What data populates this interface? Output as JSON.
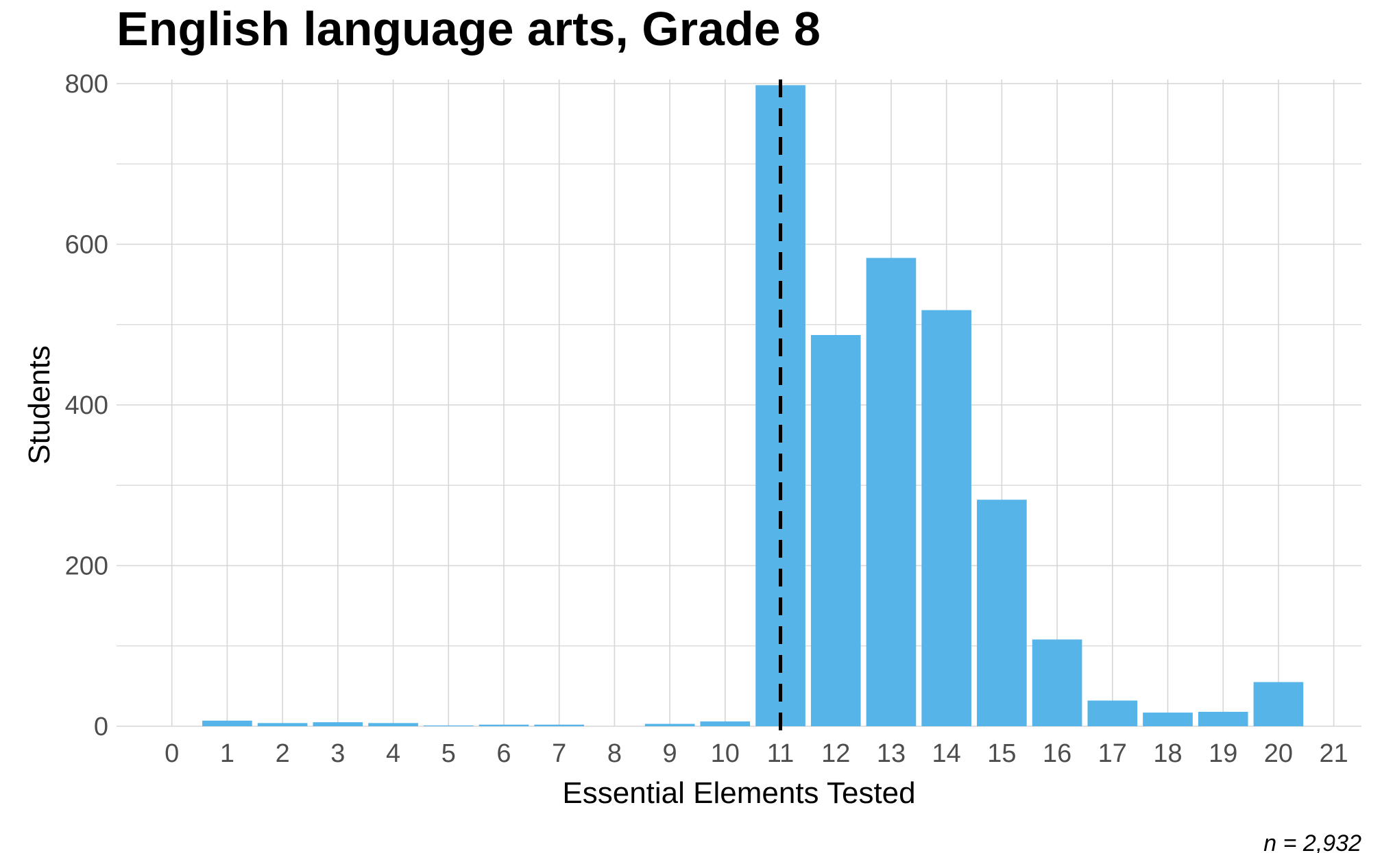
{
  "chart_data": {
    "type": "bar",
    "title": "English language arts, Grade 8",
    "xlabel": "Essential Elements Tested",
    "ylabel": "Students",
    "caption": "n = 2,932",
    "x_ticks": [
      "0",
      "1",
      "2",
      "3",
      "4",
      "5",
      "6",
      "7",
      "8",
      "9",
      "10",
      "11",
      "12",
      "13",
      "14",
      "15",
      "16",
      "17",
      "18",
      "19",
      "20",
      "21"
    ],
    "y_ticks": [
      "0",
      "200",
      "400",
      "600",
      "800"
    ],
    "xlim": [
      -1,
      21.5
    ],
    "ylim": [
      0,
      800
    ],
    "categories": [
      1,
      2,
      3,
      4,
      5,
      6,
      7,
      8,
      9,
      10,
      11,
      12,
      13,
      14,
      15,
      16,
      17,
      18,
      19,
      20
    ],
    "values": [
      7,
      4,
      5,
      4,
      1,
      2,
      2,
      0,
      3,
      6,
      798,
      487,
      583,
      518,
      282,
      108,
      32,
      17,
      18,
      55
    ],
    "bar_color": "#56b4e9",
    "reference_line": {
      "x": 11,
      "style": "dashed",
      "color": "#000000"
    },
    "grid": true
  }
}
